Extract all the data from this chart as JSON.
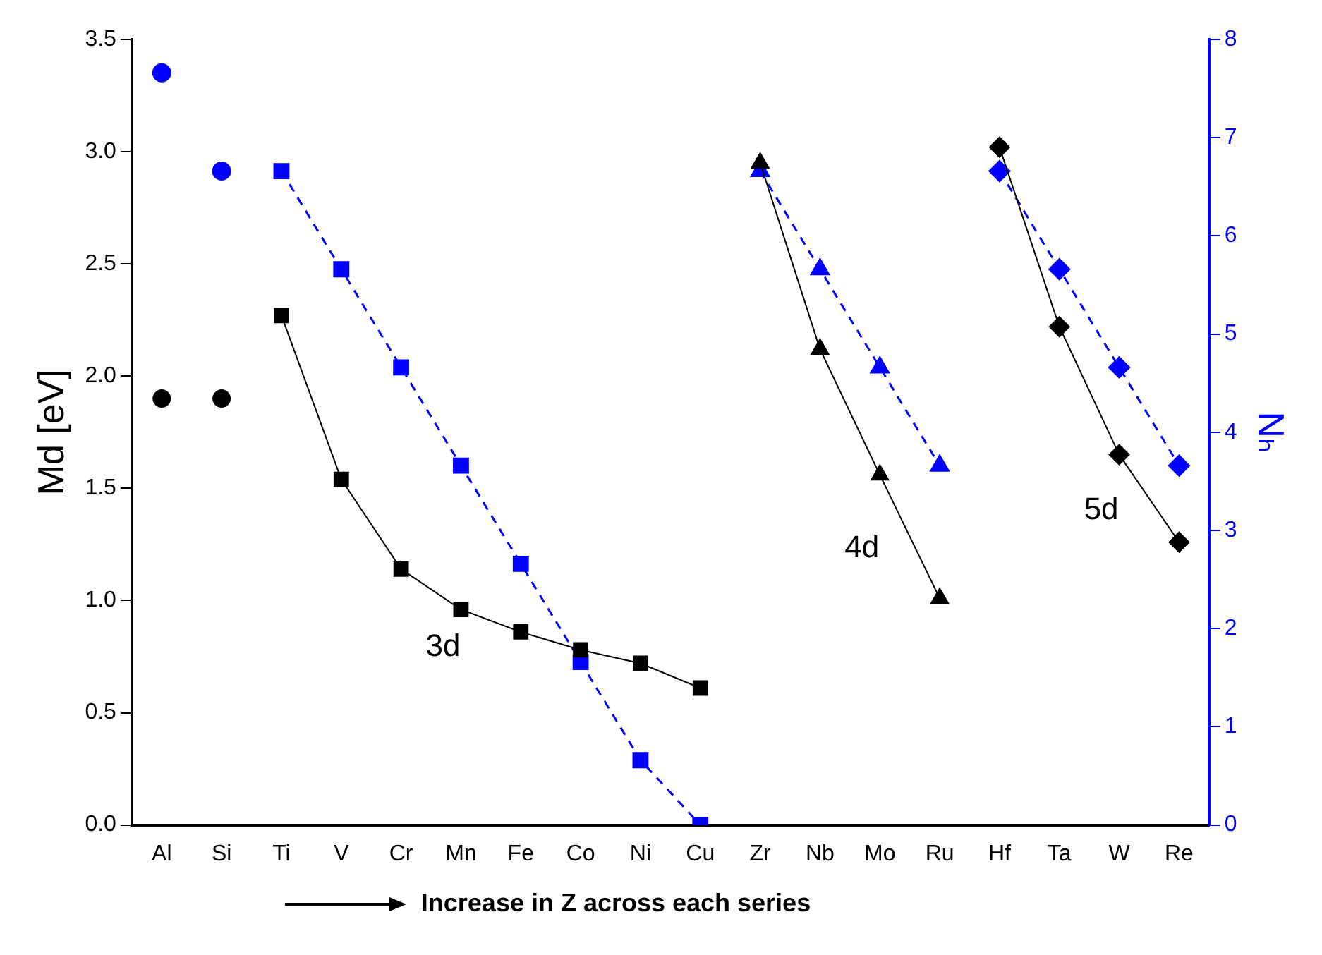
{
  "chart_data": {
    "type": "line",
    "xlabel": "Increase in Z across each series",
    "ylabel": "Md [eV]",
    "y2label": "Nₕ",
    "categories": [
      "Al",
      "Si",
      "Ti",
      "V",
      "Cr",
      "Mn",
      "Fe",
      "Co",
      "Ni",
      "Cu",
      "Zr",
      "Nb",
      "Mo",
      "Ru",
      "Hf",
      "Ta",
      "W",
      "Re"
    ],
    "ylim": [
      0,
      3.5
    ],
    "yticks": [
      {
        "value": 0,
        "label": "0.0"
      },
      0.5,
      {
        "value": 1,
        "label": "1.0"
      },
      1.5,
      {
        "value": 2,
        "label": "2.0"
      },
      2.5,
      {
        "value": 3,
        "label": "3.0"
      },
      3.5
    ],
    "y2lim": [
      0,
      8
    ],
    "y2ticks": [
      0,
      1,
      2,
      3,
      4,
      5,
      6,
      7,
      8
    ],
    "grid": false,
    "series": [
      {
        "type": "scatter",
        "color": "#000000",
        "marker": "circle",
        "values": [
          1.9,
          1.9,
          null,
          null,
          null,
          null,
          null,
          null,
          null,
          null,
          null,
          null,
          null,
          null,
          null,
          null,
          null,
          null
        ]
      },
      {
        "type": "line",
        "color": "#000000",
        "marker": "square",
        "line_style": "solid",
        "values": [
          null,
          null,
          2.27,
          1.54,
          1.14,
          0.96,
          0.86,
          0.78,
          0.72,
          0.61,
          null,
          null,
          null,
          null,
          null,
          null,
          null,
          null
        ]
      },
      {
        "type": "line",
        "color": "#000000",
        "marker": "triangle",
        "line_style": "solid",
        "values": [
          null,
          null,
          null,
          null,
          null,
          null,
          null,
          null,
          null,
          null,
          2.95,
          2.12,
          1.56,
          1.01,
          null,
          null,
          null,
          null
        ]
      },
      {
        "type": "line",
        "color": "#000000",
        "marker": "diamond",
        "line_style": "solid",
        "values": [
          null,
          null,
          null,
          null,
          null,
          null,
          null,
          null,
          null,
          null,
          null,
          null,
          null,
          null,
          3.02,
          2.22,
          1.65,
          1.26
        ]
      },
      {
        "type": "scatter",
        "color": "#0000ff",
        "marker": "circle",
        "axis": "y2",
        "values": [
          7.66,
          6.66,
          null,
          null,
          null,
          null,
          null,
          null,
          null,
          null,
          null,
          null,
          null,
          null,
          null,
          null,
          null,
          null
        ]
      },
      {
        "type": "line",
        "color": "#0000ff",
        "marker": "square",
        "line_style": "dashed",
        "axis": "y2",
        "values": [
          null,
          null,
          6.66,
          5.66,
          4.66,
          3.66,
          2.66,
          1.66,
          0.66,
          0,
          null,
          null,
          null,
          null,
          null,
          null,
          null,
          null
        ]
      },
      {
        "type": "line",
        "color": "#0000ff",
        "marker": "triangle",
        "line_style": "dashed",
        "axis": "y2",
        "values": [
          null,
          null,
          null,
          null,
          null,
          null,
          null,
          null,
          null,
          null,
          6.66,
          5.66,
          4.66,
          3.66,
          null,
          null,
          null,
          null
        ]
      },
      {
        "type": "line",
        "color": "#0000ff",
        "marker": "diamond",
        "line_style": "dashed",
        "axis": "y2",
        "values": [
          null,
          null,
          null,
          null,
          null,
          null,
          null,
          null,
          null,
          null,
          null,
          null,
          null,
          null,
          6.66,
          5.66,
          4.66,
          3.66
        ]
      }
    ],
    "annotations": [
      "3d",
      "4d",
      "5d"
    ]
  }
}
